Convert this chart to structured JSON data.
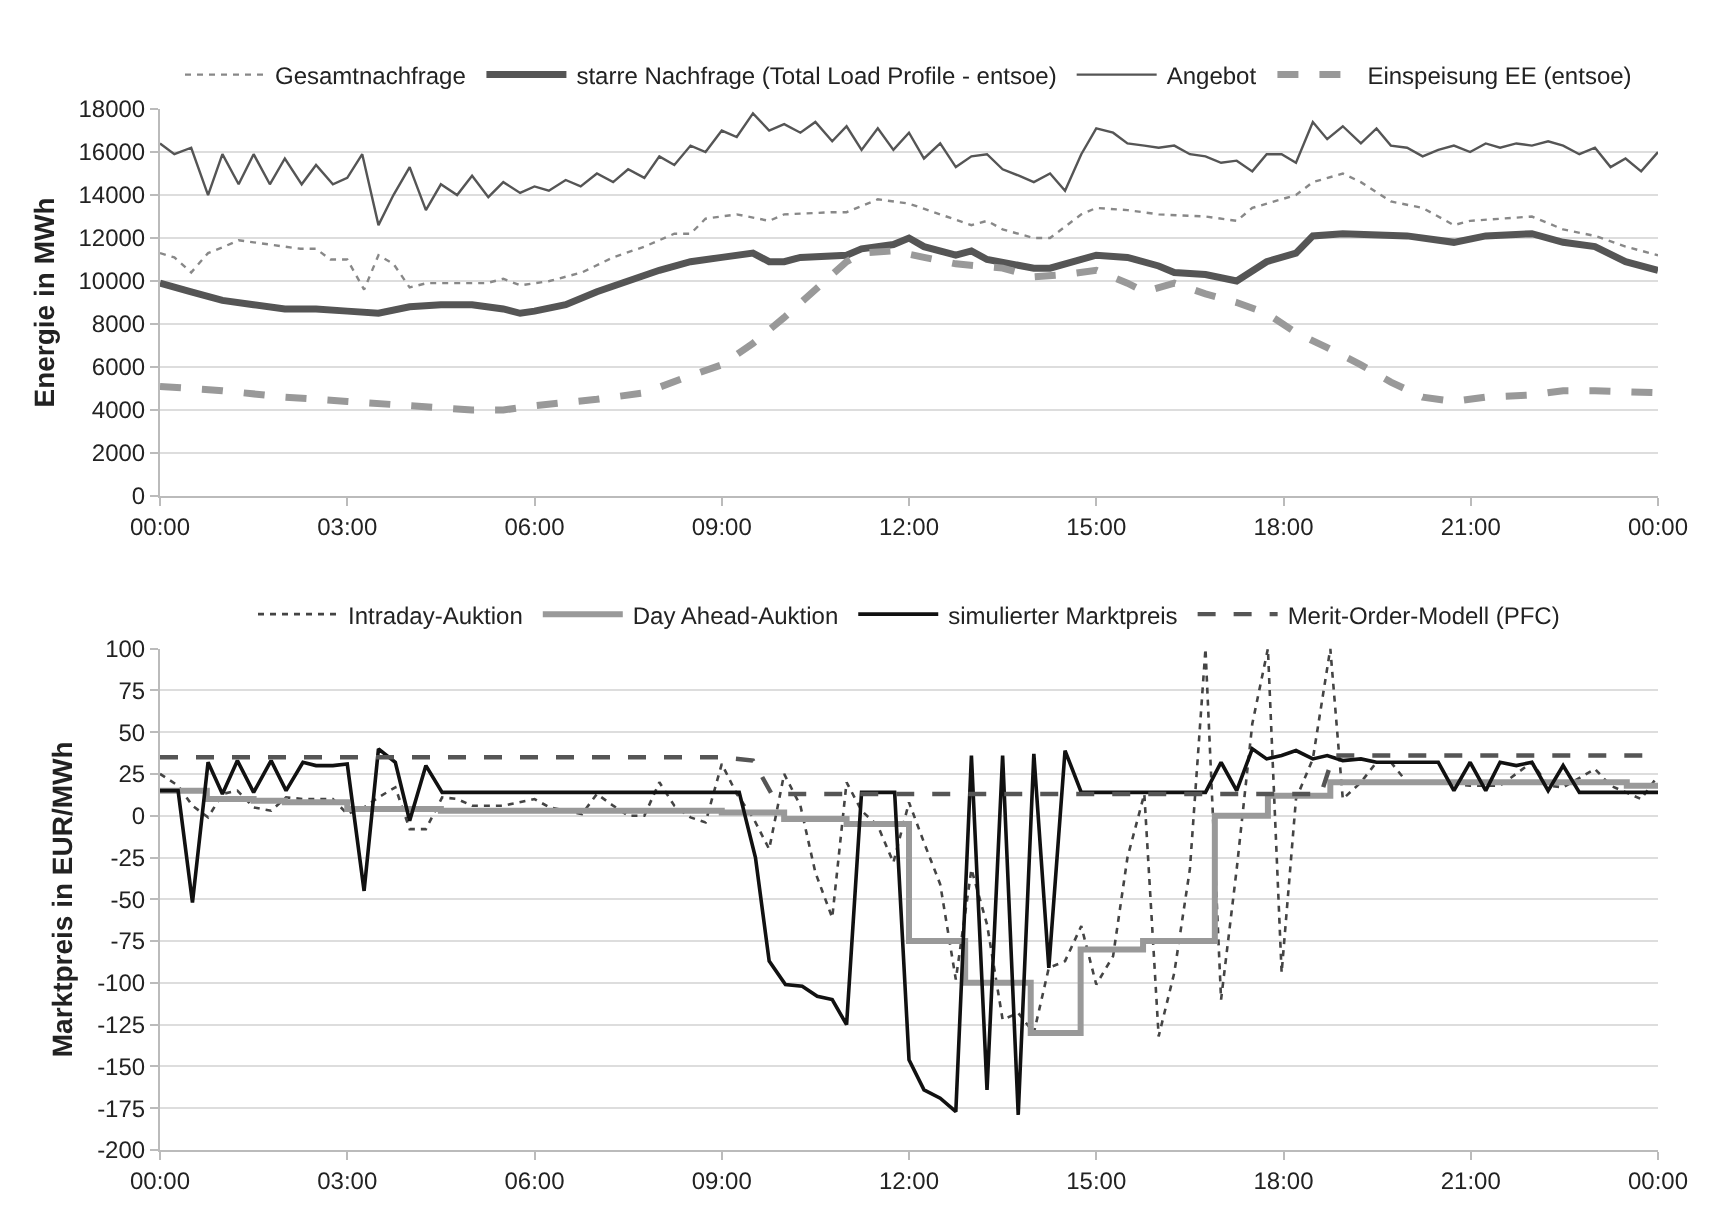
{
  "chart_data": [
    {
      "type": "line",
      "ylabel": "Energie in MWh",
      "xlim": [
        0,
        24
      ],
      "ylim": [
        0,
        18000
      ],
      "xticks": [
        {
          "value": 0,
          "label": "00:00"
        },
        {
          "value": 3,
          "label": "03:00"
        },
        {
          "value": 6,
          "label": "06:00"
        },
        {
          "value": 9,
          "label": "09:00"
        },
        {
          "value": 12,
          "label": "12:00"
        },
        {
          "value": 15,
          "label": "15:00"
        },
        {
          "value": 18,
          "label": "18:00"
        },
        {
          "value": 21,
          "label": "21:00"
        },
        {
          "value": 24,
          "label": "00:00"
        }
      ],
      "yticks": [
        0,
        2000,
        4000,
        6000,
        8000,
        10000,
        12000,
        14000,
        16000,
        18000
      ],
      "grid": "y",
      "legend": "top",
      "series": [
        {
          "name": "Gesamtnachfrage",
          "color": "#888888",
          "line_style": "dotted",
          "x": [
            0,
            0.23,
            0.5,
            0.77,
            1.03,
            1.26,
            1.5,
            2.0,
            2.25,
            2.5,
            2.73,
            3.0,
            3.27,
            3.5,
            3.74,
            4.0,
            4.27,
            4.76,
            5.23,
            5.5,
            5.77,
            6.24,
            6.76,
            7.26,
            7.76,
            8.24,
            8.5,
            8.74,
            9.24,
            9.76,
            10.0,
            10.77,
            11.0,
            11.5,
            12.0,
            12.5,
            13.0,
            13.25,
            13.5,
            14.0,
            14.26,
            14.76,
            15.0,
            15.5,
            16.0,
            16.75,
            17.25,
            17.5,
            18.2,
            18.47,
            18.95,
            19.24,
            19.72,
            20.23,
            20.73,
            20.99,
            21.98,
            22.48,
            22.99,
            23.48,
            24
          ],
          "values": [
            11300,
            11100,
            10400,
            11300,
            11600,
            11900,
            11800,
            11600,
            11500,
            11500,
            11000,
            11000,
            9600,
            11200,
            10800,
            9700,
            9900,
            9900,
            9900,
            10100,
            9800,
            10000,
            10400,
            11100,
            11600,
            12200,
            12200,
            12900,
            13100,
            12800,
            13100,
            13200,
            13200,
            13800,
            13600,
            13100,
            12600,
            12800,
            12400,
            12000,
            12000,
            13100,
            13400,
            13300,
            13100,
            13000,
            12800,
            13400,
            14000,
            14600,
            15000,
            14600,
            13700,
            13400,
            12600,
            12800,
            13000,
            12400,
            12100,
            11600,
            11200
          ]
        },
        {
          "name": "starre Nachfrage (Total Load Profile - entsoe)",
          "color": "#555555",
          "line_style": "solid",
          "x": [
            0,
            0.5,
            1.0,
            1.5,
            2.0,
            2.5,
            3.0,
            3.5,
            4.0,
            4.5,
            5.0,
            5.5,
            5.77,
            6.0,
            6.5,
            7.0,
            7.5,
            8.0,
            8.5,
            9.0,
            9.5,
            9.76,
            10.0,
            10.26,
            11.0,
            11.24,
            11.75,
            12.0,
            12.24,
            12.75,
            13.0,
            13.25,
            14.0,
            14.26,
            15.0,
            15.5,
            16.0,
            16.25,
            16.75,
            17.25,
            17.73,
            18.2,
            18.47,
            18.95,
            19.98,
            20.73,
            21.24,
            21.98,
            22.48,
            22.99,
            23.48,
            24
          ],
          "values": [
            9900,
            9500,
            9100,
            8900,
            8700,
            8700,
            8600,
            8500,
            8800,
            8900,
            8900,
            8700,
            8500,
            8600,
            8900,
            9500,
            10000,
            10500,
            10900,
            11100,
            11300,
            10900,
            10900,
            11100,
            11200,
            11500,
            11700,
            12000,
            11600,
            11200,
            11400,
            11000,
            10600,
            10600,
            11200,
            11100,
            10700,
            10400,
            10300,
            10000,
            10900,
            11300,
            12100,
            12200,
            12100,
            11800,
            12100,
            12200,
            11800,
            11600,
            10900,
            10500
          ]
        },
        {
          "name": "Angebot",
          "color": "#555555",
          "line_style": "solid",
          "x": [
            0,
            0.23,
            0.5,
            0.77,
            1.0,
            1.26,
            1.5,
            1.76,
            2.0,
            2.27,
            2.5,
            2.77,
            3.0,
            3.24,
            3.5,
            3.74,
            4.0,
            4.26,
            4.5,
            4.76,
            5.0,
            5.26,
            5.5,
            5.77,
            6.0,
            6.23,
            6.5,
            6.74,
            7.0,
            7.26,
            7.5,
            7.76,
            8.0,
            8.24,
            8.5,
            8.74,
            9.0,
            9.24,
            9.5,
            9.76,
            10.0,
            10.26,
            10.5,
            10.77,
            11.0,
            11.24,
            11.5,
            11.75,
            12.0,
            12.24,
            12.5,
            12.75,
            13.0,
            13.25,
            13.5,
            13.76,
            14.0,
            14.26,
            14.5,
            14.76,
            15.0,
            15.27,
            15.5,
            15.77,
            16.0,
            16.25,
            16.5,
            16.75,
            17.0,
            17.25,
            17.5,
            17.73,
            17.97,
            18.2,
            18.47,
            18.7,
            18.95,
            19.24,
            19.49,
            19.72,
            19.98,
            20.23,
            20.48,
            20.73,
            20.99,
            21.24,
            21.47,
            21.73,
            21.98,
            22.24,
            22.48,
            22.74,
            22.99,
            23.24,
            23.48,
            23.73,
            24
          ],
          "values": [
            16400,
            15900,
            16200,
            14000,
            15900,
            14500,
            15900,
            14500,
            15700,
            14500,
            15400,
            14500,
            14800,
            15900,
            12600,
            14000,
            15300,
            13300,
            14500,
            14000,
            14900,
            13900,
            14600,
            14100,
            14400,
            14200,
            14700,
            14400,
            15000,
            14600,
            15200,
            14800,
            15800,
            15400,
            16300,
            16000,
            17000,
            16700,
            17800,
            17000,
            17300,
            16900,
            17400,
            16500,
            17200,
            16100,
            17100,
            16100,
            16900,
            15700,
            16400,
            15300,
            15800,
            15900,
            15200,
            14900,
            14600,
            15000,
            14200,
            15900,
            17100,
            16900,
            16400,
            16300,
            16200,
            16300,
            15900,
            15800,
            15500,
            15600,
            15100,
            15900,
            15900,
            15500,
            17400,
            16600,
            17200,
            16400,
            17100,
            16300,
            16200,
            15800,
            16100,
            16300,
            16000,
            16400,
            16200,
            16400,
            16300,
            16500,
            16300,
            15900,
            16200,
            15300,
            15700,
            15100,
            16000
          ]
        },
        {
          "name": "Einspeisung EE (entsoe)",
          "color": "#999999",
          "line_style": "dashed",
          "x": [
            0,
            1.0,
            2.0,
            3.0,
            4.0,
            5.0,
            5.5,
            6.0,
            7.0,
            7.76,
            8.5,
            9.0,
            9.5,
            10.0,
            10.5,
            11.0,
            11.24,
            11.75,
            12.24,
            12.75,
            13.5,
            14.0,
            14.5,
            15.0,
            15.5,
            15.77,
            16.25,
            16.75,
            17.25,
            17.73,
            18.2,
            18.7,
            19.24,
            19.72,
            20.23,
            20.73,
            21.24,
            21.98,
            22.48,
            22.99,
            24
          ],
          "values": [
            5100,
            4900,
            4600,
            4400,
            4200,
            4000,
            4000,
            4200,
            4500,
            4800,
            5600,
            6100,
            7100,
            8300,
            9600,
            10900,
            11300,
            11400,
            11100,
            10800,
            10600,
            10200,
            10300,
            10500,
            9900,
            9500,
            9900,
            9400,
            9000,
            8500,
            7600,
            6900,
            6100,
            5300,
            4600,
            4400,
            4600,
            4700,
            4900,
            4900,
            4800
          ]
        }
      ]
    },
    {
      "type": "line",
      "ylabel": "Marktpreis in EUR/MWh",
      "xlim": [
        0,
        24
      ],
      "ylim": [
        -200,
        100
      ],
      "xticks": [
        {
          "value": 0,
          "label": "00:00"
        },
        {
          "value": 3,
          "label": "03:00"
        },
        {
          "value": 6,
          "label": "06:00"
        },
        {
          "value": 9,
          "label": "09:00"
        },
        {
          "value": 12,
          "label": "12:00"
        },
        {
          "value": 15,
          "label": "15:00"
        },
        {
          "value": 18,
          "label": "18:00"
        },
        {
          "value": 21,
          "label": "21:00"
        },
        {
          "value": 24,
          "label": "00:00"
        }
      ],
      "yticks": [
        -200,
        -175,
        -150,
        -125,
        -100,
        -75,
        -50,
        -25,
        0,
        25,
        50,
        75,
        100
      ],
      "grid": "y",
      "legend": "top",
      "series": [
        {
          "name": "Intraday-Auktion",
          "color": "#444444",
          "line_style": "dotted",
          "x": [
            0,
            0.29,
            0.52,
            0.77,
            1.0,
            1.24,
            1.5,
            1.78,
            2.02,
            2.29,
            2.5,
            2.77,
            3.0,
            3.27,
            3.5,
            3.77,
            4.0,
            4.26,
            4.52,
            4.76,
            5.0,
            5.5,
            6.0,
            6.24,
            6.76,
            7.0,
            7.26,
            7.5,
            7.76,
            8.0,
            8.24,
            8.5,
            8.74,
            9.0,
            9.24,
            9.5,
            9.76,
            10.0,
            10.26,
            10.5,
            10.77,
            11.0,
            11.24,
            11.5,
            11.75,
            12.0,
            12.24,
            12.5,
            12.75,
            13.0,
            13.25,
            13.5,
            13.75,
            14.0,
            14.24,
            14.5,
            14.76,
            15.0,
            15.27,
            15.5,
            15.77,
            16.0,
            16.25,
            16.5,
            16.75,
            17.0,
            17.25,
            17.5,
            17.75,
            17.97,
            18.2,
            18.47,
            18.75,
            18.95,
            19.24,
            19.49,
            19.72,
            19.98,
            20.48,
            20.99,
            21.47,
            21.98,
            22.24,
            22.48,
            22.99,
            23.24,
            23.73,
            24
          ],
          "values": [
            25,
            18,
            6,
            -1,
            13,
            15,
            5,
            3,
            11,
            10,
            10,
            10,
            1,
            5,
            11,
            17,
            -8,
            -8,
            11,
            10,
            6,
            6,
            10,
            5,
            1,
            13,
            6,
            0,
            0,
            20,
            6,
            -1,
            -4,
            31,
            13,
            -1,
            -20,
            25,
            6,
            -34,
            -61,
            20,
            3,
            -6,
            -28,
            8,
            -16,
            -41,
            -98,
            -32,
            -65,
            -122,
            -118,
            -130,
            -91,
            -87,
            -66,
            -101,
            -84,
            -25,
            13,
            -132,
            -94,
            -32,
            100,
            -110,
            -32,
            55,
            100,
            -94,
            10,
            34,
            100,
            10,
            20,
            32,
            32,
            20,
            20,
            18,
            18,
            32,
            18,
            17,
            28,
            18,
            10,
            24
          ]
        },
        {
          "name": "Day Ahead-Auktion",
          "type": "step",
          "color": "#999999",
          "line_style": "solid",
          "x": [
            0,
            0.75,
            1.5,
            2,
            3,
            4.5,
            9,
            10,
            11,
            12,
            12.9,
            13.95,
            14.75,
            15.75,
            16.9,
            17.75,
            18.75,
            23.5,
            24
          ],
          "values": [
            15,
            10,
            9,
            8,
            4,
            3,
            2,
            -2,
            -5,
            -75,
            -100,
            -130,
            -80,
            -75,
            0,
            12,
            20,
            18,
            18
          ]
        },
        {
          "name": "simulierter Marktpreis",
          "color": "#111111",
          "line_style": "solid",
          "x": [
            0,
            0.29,
            0.52,
            0.77,
            1.0,
            1.24,
            1.5,
            1.78,
            2.02,
            2.29,
            2.5,
            2.77,
            3.0,
            3.27,
            3.5,
            3.77,
            4.0,
            4.26,
            4.52,
            9.28,
            9.54,
            9.76,
            10.02,
            10.29,
            10.53,
            10.77,
            11.0,
            11.24,
            11.77,
            12.0,
            12.24,
            12.5,
            12.75,
            13.0,
            13.25,
            13.5,
            13.75,
            14.0,
            14.24,
            14.5,
            14.76,
            16.75,
            17.0,
            17.25,
            17.5,
            17.73,
            17.97,
            18.2,
            18.47,
            18.7,
            18.95,
            19.24,
            19.49,
            20.48,
            20.73,
            20.99,
            21.24,
            21.47,
            21.73,
            21.98,
            22.24,
            22.48,
            22.74,
            24
          ],
          "values": [
            15,
            15,
            -52,
            32,
            13,
            33,
            14,
            33,
            15,
            32,
            30,
            30,
            31,
            -45,
            40,
            32,
            -3,
            30,
            14,
            14,
            -25,
            -87,
            -101,
            -102,
            -108,
            -110,
            -125,
            14,
            14,
            -146,
            -164,
            -169,
            -177,
            36,
            -164,
            36,
            -179,
            37,
            -91,
            39,
            14,
            14,
            32,
            15,
            40,
            34,
            36,
            39,
            34,
            36,
            33,
            34,
            32,
            32,
            15,
            32,
            15,
            32,
            30,
            32,
            15,
            30,
            14,
            14
          ]
        },
        {
          "name": "Merit-Order-Modell (PFC)",
          "color": "#555555",
          "line_style": "dashed",
          "x": [
            0,
            9.0,
            9.5,
            9.8,
            18.6,
            18.8,
            24
          ],
          "values": [
            35,
            35,
            33,
            13,
            13,
            36,
            36
          ]
        }
      ]
    }
  ]
}
